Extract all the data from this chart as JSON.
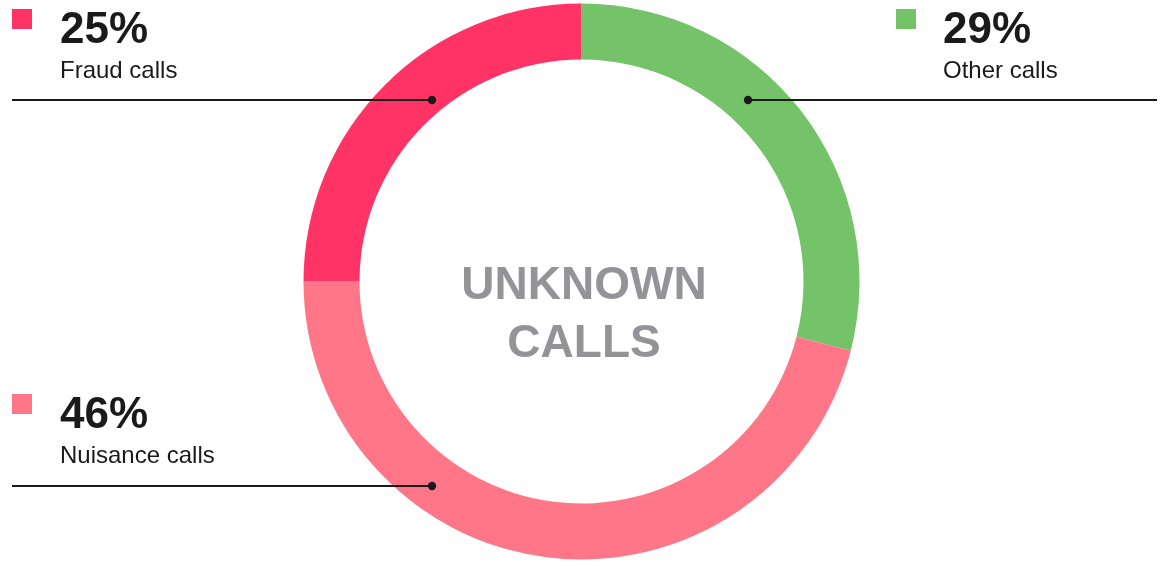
{
  "chart_data": {
    "type": "donut",
    "title": "UNKNOWN CALLS",
    "categories": [
      "Other calls",
      "Nuisance calls",
      "Fraud calls"
    ],
    "values": [
      29,
      46,
      25
    ],
    "colors": [
      "#74c369",
      "#ff7689",
      "#ff3366"
    ],
    "value_labels": [
      "29%",
      "46%",
      "25%"
    ]
  }
}
